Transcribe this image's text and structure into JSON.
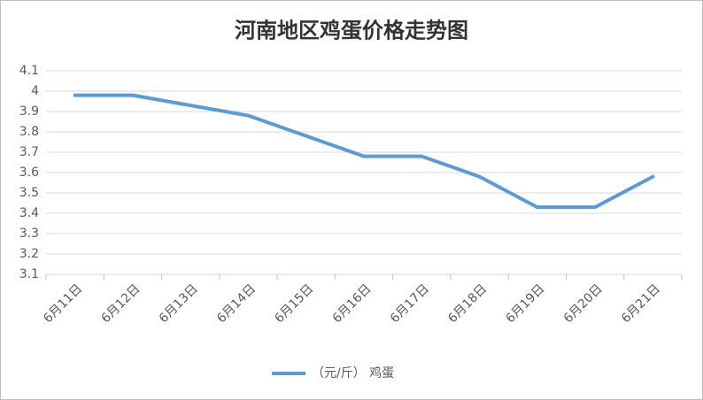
{
  "chart_data": {
    "type": "line",
    "title": "河南地区鸡蛋价格走势图",
    "categories": [
      "6月11日",
      "6月12日",
      "6月13日",
      "6月14日",
      "6月15日",
      "6月16日",
      "6月17日",
      "6月18日",
      "6月19日",
      "6月20日",
      "6月21日"
    ],
    "series": [
      {
        "name": "（元/斤） 鸡蛋",
        "color": "#5b9bd5",
        "values": [
          3.98,
          3.98,
          3.93,
          3.88,
          3.78,
          3.68,
          3.68,
          3.58,
          3.43,
          3.43,
          3.58
        ]
      }
    ],
    "ylim": [
      3.1,
      4.1
    ],
    "yticks": [
      3.1,
      3.2,
      3.3,
      3.4,
      3.5,
      3.6,
      3.7,
      3.8,
      3.9,
      4,
      4.1
    ],
    "grid": true,
    "legend": "bottom"
  }
}
